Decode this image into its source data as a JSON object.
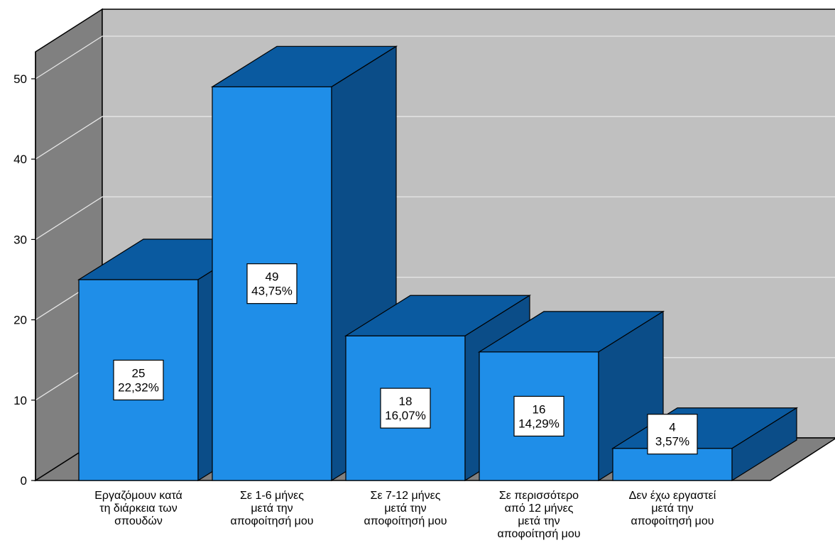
{
  "chart_data": {
    "type": "bar",
    "style": "3d",
    "title": "",
    "xlabel": "",
    "ylabel": "",
    "ylim": [
      0,
      50
    ],
    "yticks": [
      0,
      10,
      20,
      30,
      40,
      50
    ],
    "grid": true,
    "legend": "none",
    "categories": [
      [
        "Εργαζόμουν κατά",
        "τη διάρκεια των",
        "σπουδών"
      ],
      [
        "Σε 1-6 μήνες",
        "μετά την",
        "αποφοίτησή μου"
      ],
      [
        "Σε 7-12 μήνες",
        "μετά την",
        "αποφοίτησή μου"
      ],
      [
        "Σε περισσότερο",
        "από 12 μήνες",
        "μετά την",
        "αποφοίτησή μου"
      ],
      [
        "Δεν έχω εργαστεί",
        "μετά την",
        "αποφοίτησή μου"
      ]
    ],
    "values": [
      25,
      49,
      18,
      16,
      4
    ],
    "percent_labels": [
      "22,32%",
      "43,75%",
      "16,07%",
      "14,29%",
      "3,57%"
    ],
    "colors": {
      "bar_front": "#1f8ee8",
      "bar_top": "#0a5aa0",
      "bar_side": "#0b4d88",
      "wall_back": "#c0c0c0",
      "wall_left": "#808080",
      "floor": "#808080",
      "grid": "#e6e6e6",
      "outline": "#000000"
    }
  }
}
